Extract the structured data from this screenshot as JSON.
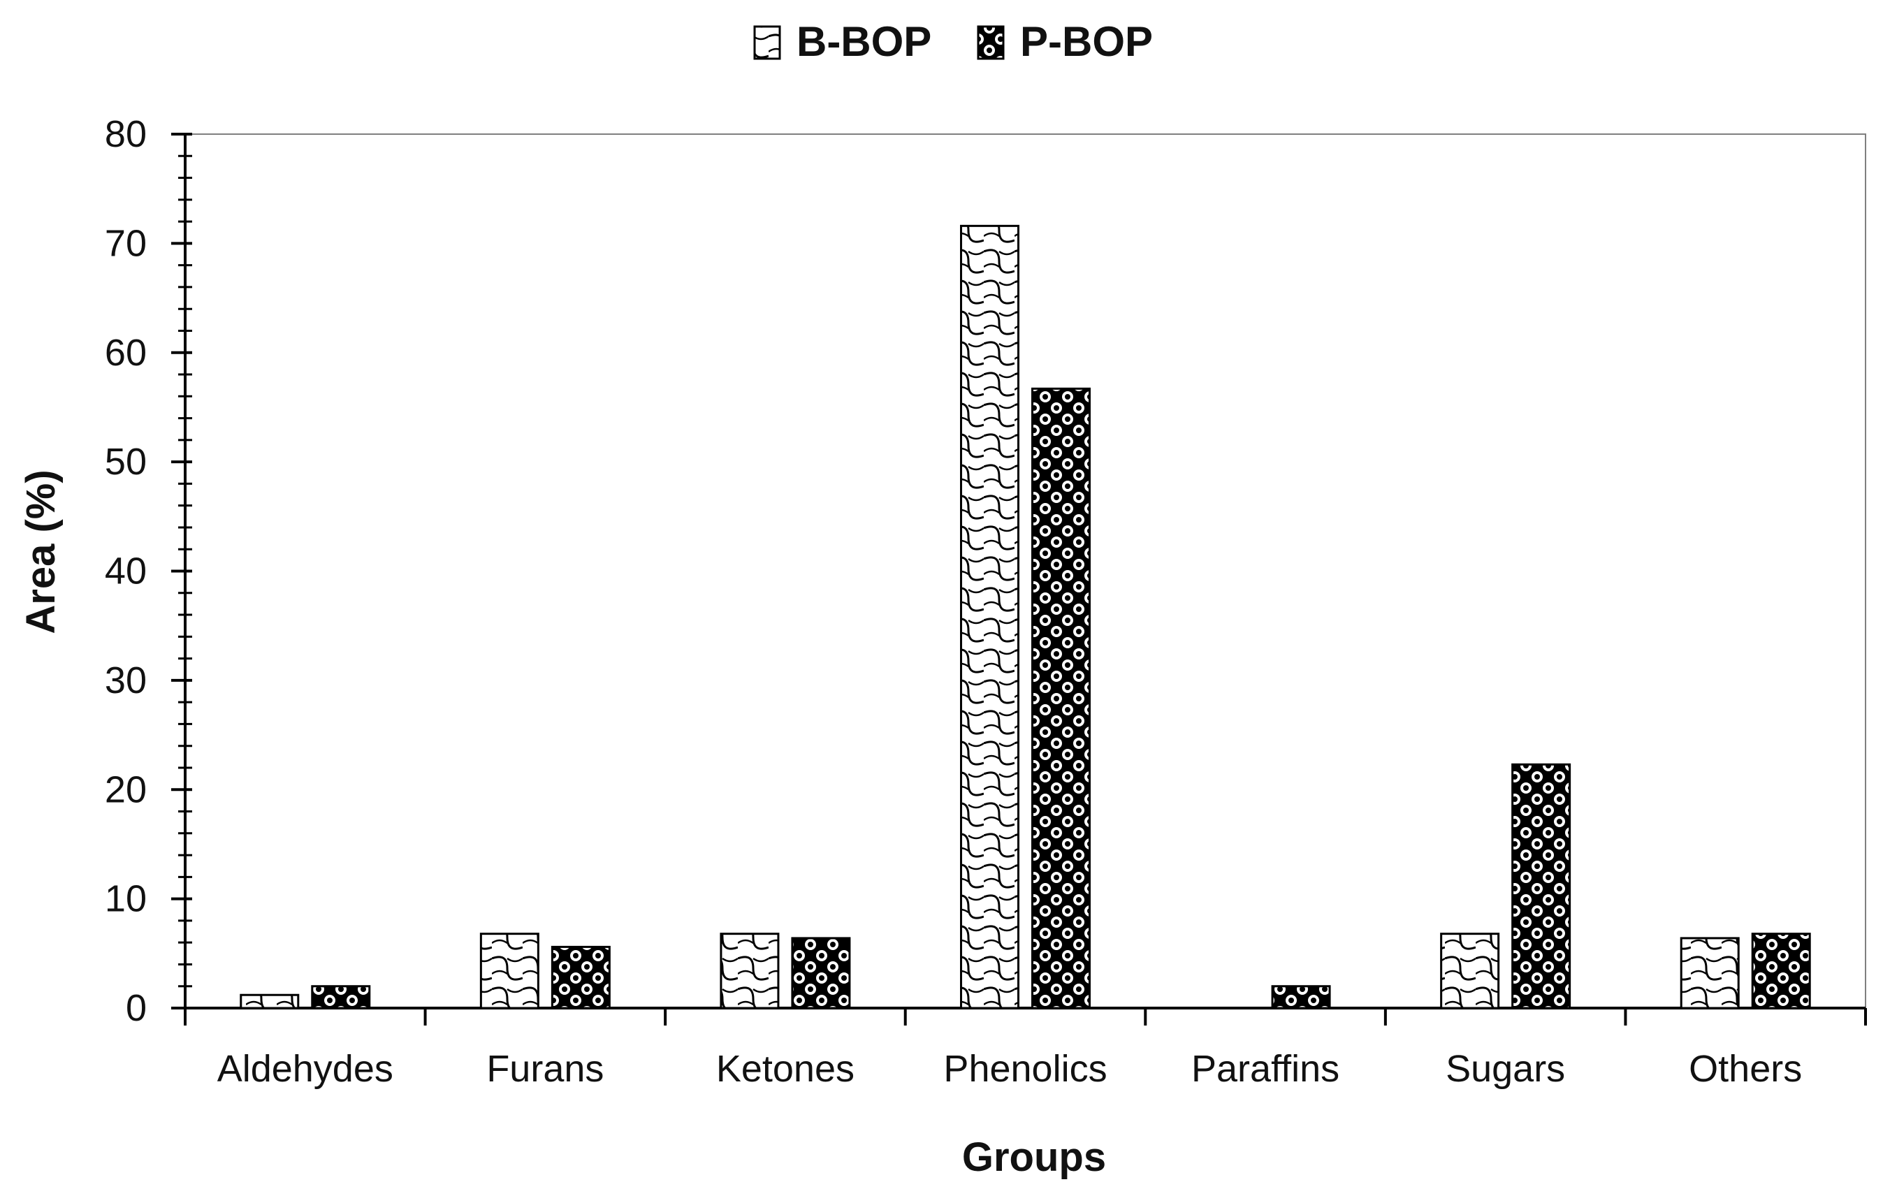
{
  "chart_data": {
    "type": "bar",
    "categories": [
      "Aldehydes",
      "Furans",
      "Ketones",
      "Phenolics",
      "Paraffins",
      "Sugars",
      "Others"
    ],
    "series": [
      {
        "name": "B-BOP",
        "values": [
          1.2,
          6.8,
          6.8,
          71.6,
          0,
          6.8,
          6.4
        ]
      },
      {
        "name": "P-BOP",
        "values": [
          2.0,
          5.6,
          6.4,
          56.7,
          2.0,
          22.3,
          6.8
        ]
      }
    ],
    "xlabel": "Groups",
    "ylabel": "Area (%)",
    "ylim": [
      0,
      80
    ],
    "yticks": [
      "0",
      "10",
      "20",
      "30",
      "40",
      "50",
      "60",
      "70",
      "80"
    ],
    "grid": false,
    "legend_position": "top-center"
  }
}
